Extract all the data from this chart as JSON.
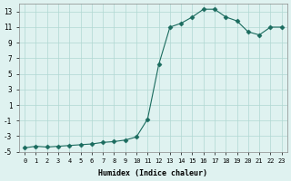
{
  "x": [
    0,
    1,
    2,
    3,
    4,
    5,
    6,
    7,
    8,
    9,
    10,
    11,
    12,
    13,
    14,
    15,
    16,
    17,
    18,
    19,
    20,
    21,
    22,
    23
  ],
  "y": [
    -4.5,
    -4.3,
    -4.4,
    -4.3,
    -4.2,
    -4.1,
    -4.0,
    -3.8,
    -3.7,
    -3.5,
    -3.1,
    -0.8,
    6.2,
    11.0,
    11.5,
    12.3,
    13.3,
    13.3,
    12.3,
    11.8,
    10.4,
    10.0,
    11.0,
    11.0
  ],
  "line_color": "#1a6b5e",
  "marker": "D",
  "marker_size": 2.5,
  "bg_color": "#dff2f0",
  "grid_color": "#b0d8d2",
  "xlabel": "Humidex (Indice chaleur)",
  "ylabel": "",
  "title": "",
  "xlim": [
    -0.5,
    23.5
  ],
  "ylim": [
    -5,
    14
  ],
  "yticks": [
    -5,
    -3,
    -1,
    1,
    3,
    5,
    7,
    9,
    11,
    13
  ],
  "xtick_labels": [
    "0",
    "1",
    "2",
    "3",
    "4",
    "5",
    "6",
    "7",
    "8",
    "9",
    "10",
    "11",
    "12",
    "13",
    "14",
    "15",
    "16",
    "17",
    "18",
    "19",
    "20",
    "21",
    "22",
    "23"
  ]
}
